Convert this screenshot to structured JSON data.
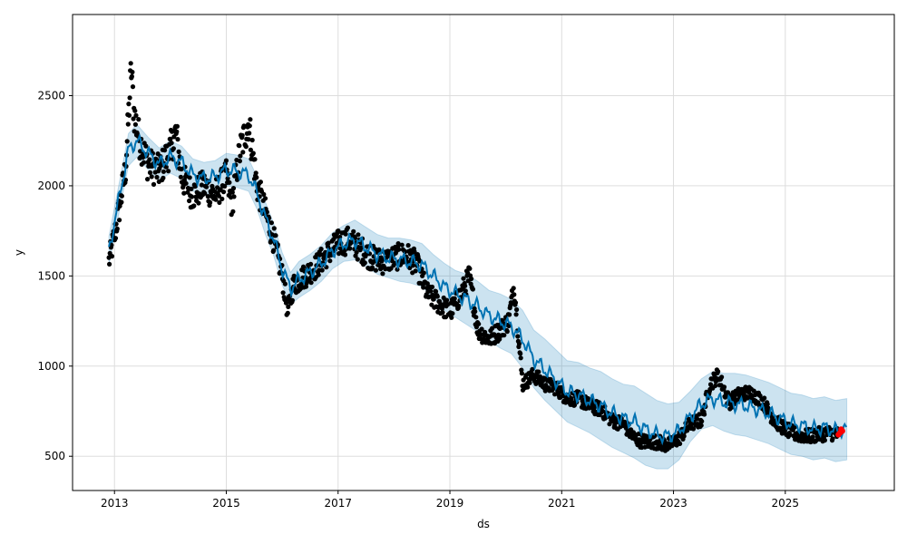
{
  "chart_data": {
    "type": "line",
    "title": "",
    "xlabel": "ds",
    "ylabel": "y",
    "xlim": [
      2012.25,
      2026.95
    ],
    "ylim": [
      310,
      2950
    ],
    "grid": true,
    "legend": "none",
    "x_ticks": [
      2013,
      2015,
      2017,
      2019,
      2021,
      2023,
      2025
    ],
    "y_ticks": [
      500,
      1000,
      1500,
      2000,
      2500
    ],
    "colors": {
      "observed": "#000000",
      "forecast": "#0072B2",
      "interval": "#0072B2",
      "highlight": "#ff0000",
      "grid": "#dddddd"
    },
    "forecast": {
      "x": [
        2012.9,
        2013.1,
        2013.25,
        2013.4,
        2013.6,
        2013.8,
        2014.0,
        2014.2,
        2014.4,
        2014.6,
        2014.8,
        2015.0,
        2015.2,
        2015.4,
        2015.55,
        2015.7,
        2015.85,
        2016.0,
        2016.15,
        2016.3,
        2016.5,
        2016.7,
        2016.9,
        2017.1,
        2017.3,
        2017.5,
        2017.7,
        2017.9,
        2018.1,
        2018.3,
        2018.5,
        2018.7,
        2018.9,
        2019.1,
        2019.3,
        2019.5,
        2019.7,
        2019.9,
        2020.1,
        2020.3,
        2020.5,
        2020.7,
        2020.9,
        2021.1,
        2021.3,
        2021.5,
        2021.7,
        2021.9,
        2022.1,
        2022.3,
        2022.5,
        2022.7,
        2022.9,
        2023.1,
        2023.3,
        2023.5,
        2023.7,
        2023.9,
        2024.1,
        2024.3,
        2024.5,
        2024.7,
        2024.9,
        2025.1,
        2025.3,
        2025.5,
        2025.7,
        2025.9,
        2026.1
      ],
      "yhat": [
        1640,
        1960,
        2200,
        2250,
        2180,
        2120,
        2160,
        2130,
        2060,
        2040,
        2050,
        2090,
        2080,
        2060,
        1960,
        1820,
        1700,
        1540,
        1430,
        1480,
        1520,
        1570,
        1640,
        1680,
        1700,
        1660,
        1620,
        1600,
        1590,
        1580,
        1560,
        1500,
        1440,
        1400,
        1370,
        1330,
        1280,
        1250,
        1220,
        1150,
        1040,
        980,
        920,
        860,
        840,
        810,
        780,
        740,
        710,
        690,
        650,
        620,
        610,
        640,
        720,
        790,
        820,
        800,
        790,
        780,
        760,
        740,
        710,
        680,
        670,
        650,
        660,
        640,
        650
      ],
      "yhat_lower": [
        1560,
        1880,
        2110,
        2160,
        2090,
        2030,
        2070,
        2040,
        1970,
        1950,
        1960,
        2000,
        1990,
        1970,
        1870,
        1730,
        1610,
        1450,
        1340,
        1380,
        1420,
        1470,
        1540,
        1580,
        1590,
        1550,
        1510,
        1490,
        1470,
        1460,
        1440,
        1380,
        1310,
        1270,
        1230,
        1190,
        1140,
        1100,
        1070,
        990,
        880,
        810,
        750,
        690,
        660,
        630,
        590,
        550,
        520,
        490,
        450,
        430,
        430,
        480,
        580,
        650,
        670,
        640,
        620,
        610,
        590,
        570,
        540,
        510,
        500,
        480,
        490,
        470,
        480
      ],
      "yhat_upper": [
        1720,
        2040,
        2290,
        2340,
        2270,
        2210,
        2250,
        2220,
        2150,
        2130,
        2140,
        2180,
        2170,
        2150,
        2050,
        1910,
        1790,
        1630,
        1520,
        1580,
        1620,
        1670,
        1740,
        1780,
        1810,
        1770,
        1730,
        1710,
        1710,
        1700,
        1680,
        1620,
        1570,
        1530,
        1510,
        1470,
        1420,
        1400,
        1370,
        1310,
        1200,
        1150,
        1090,
        1030,
        1020,
        990,
        970,
        930,
        900,
        890,
        850,
        810,
        790,
        800,
        860,
        930,
        970,
        960,
        960,
        950,
        930,
        910,
        880,
        850,
        840,
        820,
        830,
        810,
        820
      ]
    },
    "observed_trend": {
      "x": [
        2012.9,
        2013.0,
        2013.1,
        2013.2,
        2013.3,
        2013.35,
        2013.45,
        2013.6,
        2013.8,
        2014.0,
        2014.1,
        2014.2,
        2014.4,
        2014.6,
        2014.8,
        2015.0,
        2015.1,
        2015.25,
        2015.4,
        2015.55,
        2015.7,
        2015.85,
        2016.0,
        2016.1,
        2016.2,
        2016.4,
        2016.6,
        2016.8,
        2017.0,
        2017.2,
        2017.4,
        2017.6,
        2017.8,
        2018.0,
        2018.2,
        2018.4,
        2018.6,
        2018.8,
        2019.0,
        2019.2,
        2019.35,
        2019.5,
        2019.7,
        2019.9,
        2020.05,
        2020.15,
        2020.3,
        2020.5,
        2020.7,
        2020.9,
        2021.1,
        2021.3,
        2021.5,
        2021.7,
        2021.9,
        2022.1,
        2022.3,
        2022.5,
        2022.7,
        2022.9,
        2023.1,
        2023.3,
        2023.5,
        2023.65,
        2023.8,
        2024.0,
        2024.2,
        2024.4,
        2024.6,
        2024.8,
        2025.0,
        2025.2,
        2025.4,
        2025.6,
        2025.8,
        2025.95
      ],
      "y": [
        1580,
        1720,
        1900,
        2100,
        2650,
        2400,
        2250,
        2120,
        2080,
        2200,
        2300,
        2050,
        1950,
        2000,
        1950,
        2050,
        1900,
        2200,
        2350,
        2000,
        1850,
        1700,
        1500,
        1300,
        1450,
        1500,
        1550,
        1620,
        1680,
        1700,
        1650,
        1600,
        1580,
        1600,
        1620,
        1570,
        1400,
        1350,
        1300,
        1400,
        1500,
        1200,
        1150,
        1200,
        1250,
        1450,
        900,
        950,
        900,
        880,
        820,
        820,
        780,
        760,
        700,
        680,
        600,
        580,
        580,
        560,
        600,
        680,
        700,
        900,
        950,
        800,
        850,
        850,
        800,
        700,
        650,
        620,
        610,
        620,
        630,
        620
      ]
    },
    "highlight": {
      "x": [
        2025.95,
        2025.98,
        2026.0,
        2026.02
      ],
      "y": [
        620,
        630,
        650,
        640
      ]
    }
  }
}
